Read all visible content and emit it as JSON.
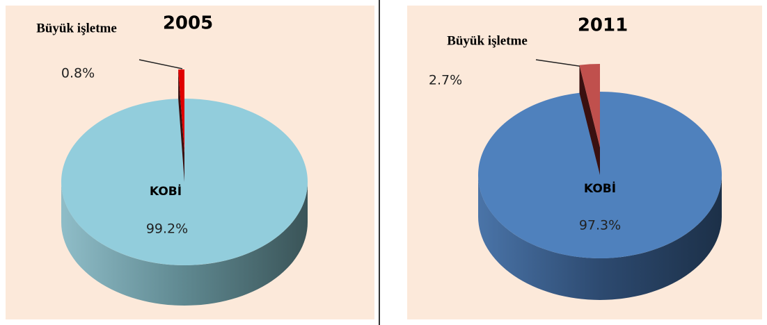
{
  "chart_data": [
    {
      "type": "pie",
      "title": "2005",
      "categories": [
        "Büyük işletme",
        "KOBİ"
      ],
      "values": [
        0.8,
        99.2
      ],
      "value_labels": [
        "0.8%",
        "99.2%"
      ],
      "colors": [
        "#e00000",
        "#92cddc"
      ]
    },
    {
      "type": "pie",
      "title": "2011",
      "categories": [
        "Büyük işletme",
        "KOBİ"
      ],
      "values": [
        2.7,
        97.3
      ],
      "value_labels": [
        "2.7%",
        "97.3%"
      ],
      "colors": [
        "#c0504d",
        "#4f81bd"
      ]
    }
  ]
}
